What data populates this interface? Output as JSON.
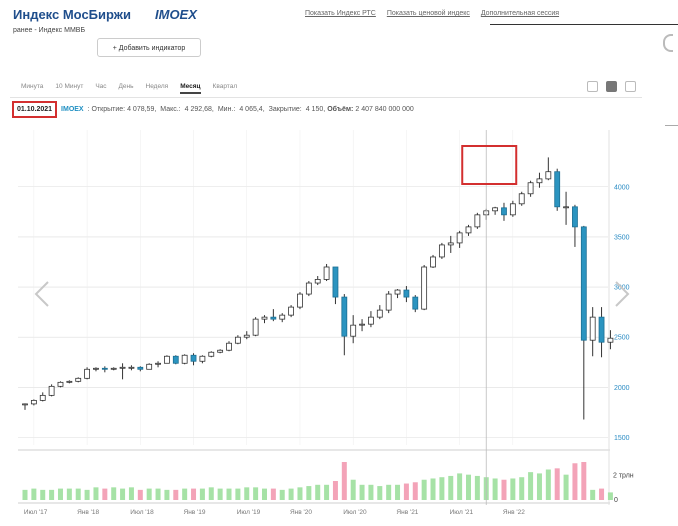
{
  "header": {
    "title": "Индекс МосБиржи",
    "ticker": "IMOEX",
    "subtitle": "ранее - Индекс ММВБ",
    "links": [
      "Показать Индекс РТС",
      "Показать ценовой индекс",
      "Дополнительная сессия"
    ],
    "add_indicator": "+ Добавить индикатор"
  },
  "tabs": {
    "items": [
      "Минута",
      "10 Минут",
      "Час",
      "День",
      "Неделя",
      "Месяц",
      "Квартал"
    ],
    "active": "Месяц"
  },
  "info": {
    "date": "01.10.2021",
    "ticker": "IMOEX",
    "open_label": ": Открытие:",
    "open": "4 078,59,",
    "max_label": "Макс.:",
    "max": "4 292,68,",
    "min_label": "Мин.:",
    "min": "4 065,4,",
    "close_label": "Закрытие:",
    "close": "4 150,",
    "volume_label": "Объём:",
    "volume": "2 407 840 000 000"
  },
  "colors": {
    "up_body": "#ffffff",
    "down_body": "#2b94c0",
    "wick": "#333333",
    "volume_up": "#a6e2a6",
    "volume_down": "#f3a3b8",
    "grid": "#dddddd",
    "axis_text": "#2b8cc4",
    "highlight": "#d32f2f",
    "brand": "#1f4e8c"
  },
  "icons": [
    "chevron-left-icon",
    "chevron-right-icon",
    "line-chart-icon",
    "candle-chart-icon",
    "settings-icon"
  ],
  "chart_data": {
    "type": "candlestick",
    "months_start": "2017-06",
    "yticks": [
      1500,
      2000,
      2500,
      3000,
      3500,
      4000
    ],
    "yticklabels": [
      "1500",
      "2000",
      "2500",
      "3000",
      "3500",
      "4000"
    ],
    "ylim": [
      1400,
      4300
    ],
    "vol_ticklabels": [
      "2 трлн",
      "0"
    ],
    "vol_max_trln": 3,
    "xticks": [
      "Июл '17",
      "Янв '18",
      "Июл '18",
      "Янв '19",
      "Июл '19",
      "Янв '20",
      "Июл '20",
      "Янв '21",
      "Июл '21",
      "Янв '22"
    ],
    "highlighted_candle": "2021-10",
    "candles": [
      {
        "o": 1830,
        "h": 1840,
        "l": 1775,
        "c": 1835,
        "v": 0.8
      },
      {
        "o": 1835,
        "h": 1880,
        "l": 1820,
        "c": 1870,
        "v": 0.9
      },
      {
        "o": 1870,
        "h": 1950,
        "l": 1860,
        "c": 1920,
        "v": 0.8
      },
      {
        "o": 1920,
        "h": 2030,
        "l": 1910,
        "c": 2010,
        "v": 0.8
      },
      {
        "o": 2010,
        "h": 2060,
        "l": 2000,
        "c": 2050,
        "v": 0.9
      },
      {
        "o": 2050,
        "h": 2070,
        "l": 2040,
        "c": 2060,
        "v": 0.9
      },
      {
        "o": 2060,
        "h": 2100,
        "l": 2050,
        "c": 2090,
        "v": 0.9
      },
      {
        "o": 2090,
        "h": 2200,
        "l": 2080,
        "c": 2180,
        "v": 0.8
      },
      {
        "o": 2180,
        "h": 2200,
        "l": 2160,
        "c": 2190,
        "v": 1.0
      },
      {
        "o": 2190,
        "h": 2210,
        "l": 2150,
        "c": 2180,
        "v": 0.9
      },
      {
        "o": 2180,
        "h": 2200,
        "l": 2170,
        "c": 2190,
        "v": 1.0
      },
      {
        "o": 2190,
        "h": 2240,
        "l": 2080,
        "c": 2200,
        "v": 0.9
      },
      {
        "o": 2200,
        "h": 2220,
        "l": 2170,
        "c": 2200,
        "v": 1.0
      },
      {
        "o": 2200,
        "h": 2210,
        "l": 2160,
        "c": 2180,
        "v": 0.8
      },
      {
        "o": 2180,
        "h": 2240,
        "l": 2180,
        "c": 2230,
        "v": 0.9
      },
      {
        "o": 2230,
        "h": 2260,
        "l": 2200,
        "c": 2240,
        "v": 0.9
      },
      {
        "o": 2240,
        "h": 2320,
        "l": 2240,
        "c": 2310,
        "v": 0.8
      },
      {
        "o": 2310,
        "h": 2320,
        "l": 2230,
        "c": 2240,
        "v": 0.8
      },
      {
        "o": 2240,
        "h": 2330,
        "l": 2230,
        "c": 2320,
        "v": 0.9
      },
      {
        "o": 2320,
        "h": 2340,
        "l": 2220,
        "c": 2260,
        "v": 0.9
      },
      {
        "o": 2260,
        "h": 2320,
        "l": 2240,
        "c": 2310,
        "v": 0.9
      },
      {
        "o": 2310,
        "h": 2360,
        "l": 2300,
        "c": 2350,
        "v": 1.0
      },
      {
        "o": 2350,
        "h": 2380,
        "l": 2340,
        "c": 2370,
        "v": 0.9
      },
      {
        "o": 2370,
        "h": 2460,
        "l": 2360,
        "c": 2440,
        "v": 0.9
      },
      {
        "o": 2440,
        "h": 2520,
        "l": 2430,
        "c": 2500,
        "v": 0.9
      },
      {
        "o": 2500,
        "h": 2560,
        "l": 2480,
        "c": 2520,
        "v": 1.0
      },
      {
        "o": 2520,
        "h": 2700,
        "l": 2510,
        "c": 2680,
        "v": 1.0
      },
      {
        "o": 2680,
        "h": 2720,
        "l": 2640,
        "c": 2700,
        "v": 0.9
      },
      {
        "o": 2700,
        "h": 2780,
        "l": 2660,
        "c": 2680,
        "v": 0.9
      },
      {
        "o": 2680,
        "h": 2740,
        "l": 2650,
        "c": 2720,
        "v": 0.8
      },
      {
        "o": 2720,
        "h": 2820,
        "l": 2700,
        "c": 2800,
        "v": 0.9
      },
      {
        "o": 2800,
        "h": 2950,
        "l": 2780,
        "c": 2930,
        "v": 1.0
      },
      {
        "o": 2930,
        "h": 3060,
        "l": 2910,
        "c": 3040,
        "v": 1.1
      },
      {
        "o": 3040,
        "h": 3110,
        "l": 3020,
        "c": 3076,
        "v": 1.2
      },
      {
        "o": 3076,
        "h": 3230,
        "l": 3060,
        "c": 3200,
        "v": 1.2
      },
      {
        "o": 3200,
        "h": 3180,
        "l": 2830,
        "c": 2900,
        "v": 1.5
      },
      {
        "o": 2900,
        "h": 2930,
        "l": 2320,
        "c": 2510,
        "v": 3.0
      },
      {
        "o": 2510,
        "h": 2720,
        "l": 2440,
        "c": 2620,
        "v": 1.6
      },
      {
        "o": 2620,
        "h": 2680,
        "l": 2560,
        "c": 2630,
        "v": 1.2
      },
      {
        "o": 2630,
        "h": 2760,
        "l": 2600,
        "c": 2700,
        "v": 1.2
      },
      {
        "o": 2700,
        "h": 2820,
        "l": 2680,
        "c": 2770,
        "v": 1.1
      },
      {
        "o": 2770,
        "h": 2960,
        "l": 2740,
        "c": 2930,
        "v": 1.2
      },
      {
        "o": 2930,
        "h": 2980,
        "l": 2890,
        "c": 2970,
        "v": 1.2
      },
      {
        "o": 2970,
        "h": 3010,
        "l": 2850,
        "c": 2900,
        "v": 1.3
      },
      {
        "o": 2900,
        "h": 2920,
        "l": 2750,
        "c": 2780,
        "v": 1.4
      },
      {
        "o": 2780,
        "h": 3220,
        "l": 2770,
        "c": 3200,
        "v": 1.6
      },
      {
        "o": 3200,
        "h": 3320,
        "l": 3190,
        "c": 3300,
        "v": 1.7
      },
      {
        "o": 3300,
        "h": 3440,
        "l": 3280,
        "c": 3420,
        "v": 1.8
      },
      {
        "o": 3420,
        "h": 3510,
        "l": 3340,
        "c": 3440,
        "v": 1.9
      },
      {
        "o": 3440,
        "h": 3560,
        "l": 3390,
        "c": 3540,
        "v": 2.1
      },
      {
        "o": 3540,
        "h": 3620,
        "l": 3510,
        "c": 3600,
        "v": 2.0
      },
      {
        "o": 3600,
        "h": 3740,
        "l": 3580,
        "c": 3720,
        "v": 1.9
      },
      {
        "o": 3720,
        "h": 3780,
        "l": 3670,
        "c": 3760,
        "v": 1.8
      },
      {
        "o": 3760,
        "h": 3800,
        "l": 3720,
        "c": 3790,
        "v": 1.7
      },
      {
        "o": 3790,
        "h": 3840,
        "l": 3660,
        "c": 3720,
        "v": 1.6
      },
      {
        "o": 3720,
        "h": 3860,
        "l": 3700,
        "c": 3830,
        "v": 1.7
      },
      {
        "o": 3830,
        "h": 3950,
        "l": 3810,
        "c": 3930,
        "v": 1.8
      },
      {
        "o": 3930,
        "h": 4060,
        "l": 3900,
        "c": 4040,
        "v": 2.2
      },
      {
        "o": 4040,
        "h": 4140,
        "l": 3990,
        "c": 4078.59,
        "v": 2.1
      },
      {
        "o": 4078.59,
        "h": 4292.68,
        "l": 4065.4,
        "c": 4150,
        "v": 2.407
      },
      {
        "o": 4150,
        "h": 4180,
        "l": 3760,
        "c": 3800,
        "v": 2.5
      },
      {
        "o": 3800,
        "h": 3950,
        "l": 3620,
        "c": 3800,
        "v": 2.0
      },
      {
        "o": 3800,
        "h": 3820,
        "l": 3400,
        "c": 3600,
        "v": 2.9
      },
      {
        "o": 3600,
        "h": 3610,
        "l": 1680,
        "c": 2470,
        "v": 3.0
      },
      {
        "o": 2470,
        "h": 2800,
        "l": 2310,
        "c": 2700,
        "v": 0.8
      },
      {
        "o": 2700,
        "h": 2800,
        "l": 2300,
        "c": 2450,
        "v": 0.9
      },
      {
        "o": 2450,
        "h": 2570,
        "l": 2380,
        "c": 2490,
        "v": 0.6
      }
    ]
  }
}
